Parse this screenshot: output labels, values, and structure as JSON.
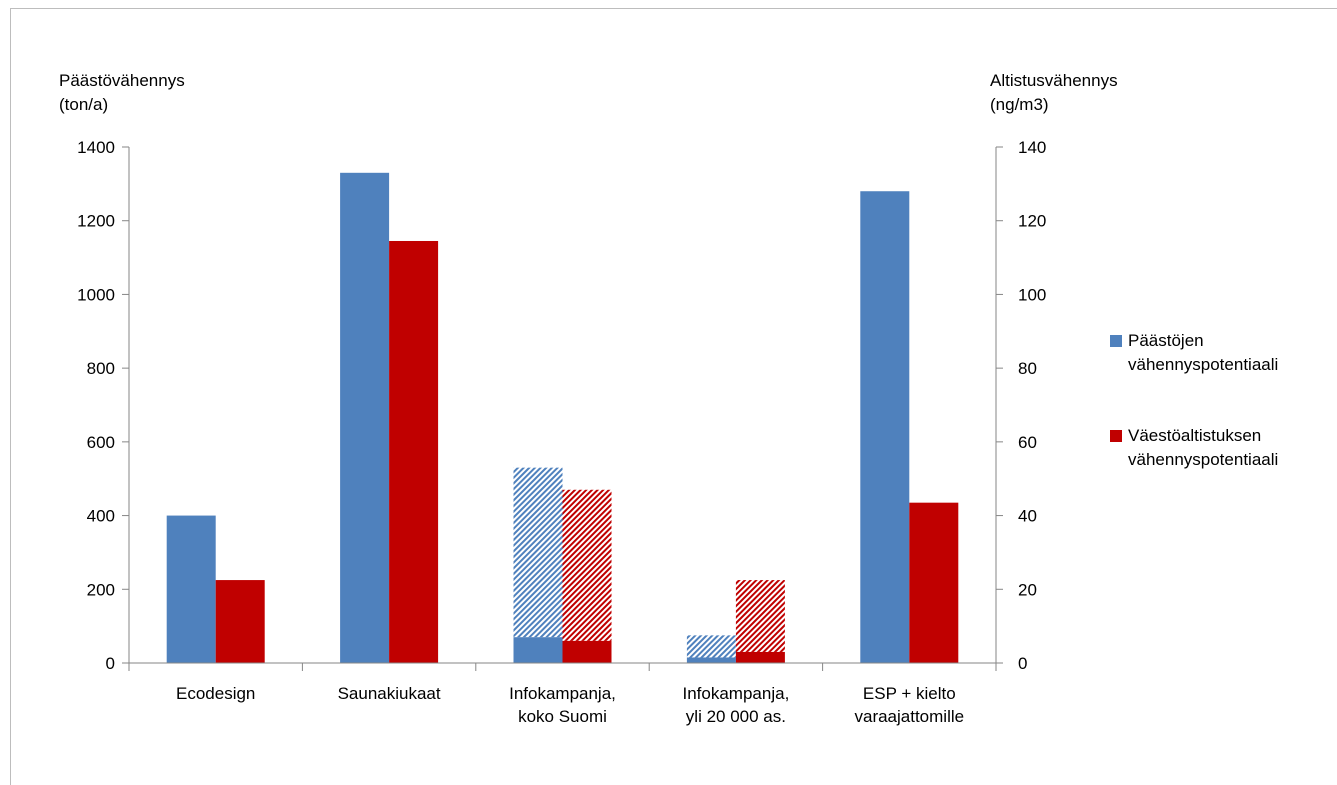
{
  "chart_data": {
    "type": "bar",
    "categories": [
      [
        "Ecodesign"
      ],
      [
        "Saunakiukaat"
      ],
      [
        "Infokampanja,",
        "koko Suomi"
      ],
      [
        "Infokampanja,",
        "yli 20 000 as."
      ],
      [
        "ESP + kielto",
        "varaajattomille"
      ]
    ],
    "y_left": {
      "label_lines": [
        "Päästövähennys",
        "(ton/a)"
      ],
      "range": [
        0,
        1400
      ],
      "ticks": [
        "0",
        "200",
        "400",
        "600",
        "800",
        "1000",
        "1200",
        "1400"
      ]
    },
    "y_right": {
      "label_lines": [
        "Altistusvähennys",
        "(ng/m3)"
      ],
      "range": [
        0,
        140
      ],
      "ticks": [
        "0",
        "20",
        "40",
        "60",
        "80",
        "100",
        "120",
        "140"
      ]
    },
    "series": [
      {
        "name": "Päästöjen vähennyspotentiaali",
        "legend_lines": [
          "Päästöjen",
          "vähennyspotentiaali"
        ],
        "axis": "left",
        "color": "#4f81bd",
        "values": [
          400,
          1330,
          70,
          15,
          1280
        ],
        "hatched_upper": [
          null,
          null,
          530,
          75,
          null
        ]
      },
      {
        "name": "Väestöaltistuksen vähennyspotentiaali",
        "legend_lines": [
          "Väestöaltistuksen",
          "vähennyspotentiaali"
        ],
        "axis": "right",
        "color": "#c00000",
        "values": [
          22.5,
          114.5,
          6,
          3,
          43.5
        ],
        "hatched_upper": [
          null,
          null,
          47,
          22.5,
          null
        ]
      }
    ],
    "legend_position": "right",
    "grid": false
  }
}
